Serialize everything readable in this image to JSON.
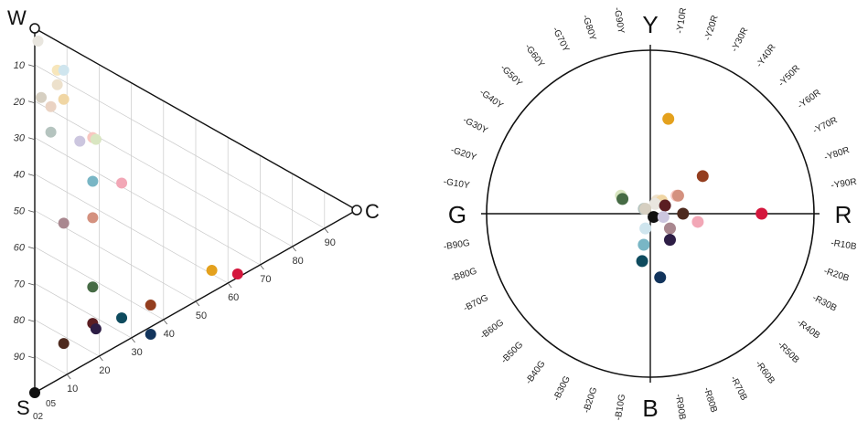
{
  "chart_data": [
    {
      "type": "scatter",
      "projection": "ternary",
      "vertices": {
        "top": "W",
        "right": "C",
        "bottom": "S"
      },
      "left_ticks": [
        "10",
        "20",
        "30",
        "40",
        "50",
        "60",
        "70",
        "80",
        "90"
      ],
      "c_ticks": [
        "10",
        "20",
        "30",
        "40",
        "50",
        "60",
        "70",
        "80",
        "90"
      ],
      "c_ticks_minor": [
        "02",
        "05"
      ],
      "grid": true,
      "points": [
        {
          "s": 3,
          "c": 1,
          "color": "#e9e6df"
        },
        {
          "s": 8,
          "c": 7,
          "color": "#f7e6bb"
        },
        {
          "s": 7,
          "c": 9,
          "color": "#cfe5ee"
        },
        {
          "s": 12,
          "c": 7,
          "color": "#ede1cc"
        },
        {
          "s": 15,
          "c": 9,
          "color": "#f0d6a4"
        },
        {
          "s": 18,
          "c": 2,
          "color": "#d6cfc1"
        },
        {
          "s": 19,
          "c": 5,
          "color": "#ead3c3"
        },
        {
          "s": 21,
          "c": 18,
          "color": "#f8c7c0"
        },
        {
          "s": 21,
          "c": 19,
          "color": "#d9e6c1"
        },
        {
          "s": 26,
          "c": 5,
          "color": "#b5c4bf"
        },
        {
          "s": 24,
          "c": 14,
          "color": "#ccc6df"
        },
        {
          "s": 29,
          "c": 27,
          "color": "#f2a7b6"
        },
        {
          "s": 33,
          "c": 18,
          "color": "#79b6c5"
        },
        {
          "s": 43,
          "c": 18,
          "color": "#d4917f"
        },
        {
          "s": 49,
          "c": 9,
          "color": "#a9878f"
        },
        {
          "s": 39,
          "c": 55,
          "color": "#e4a11d"
        },
        {
          "s": 36,
          "c": 63,
          "color": "#d4173d"
        },
        {
          "s": 62,
          "c": 18,
          "color": "#466b45"
        },
        {
          "s": 58,
          "c": 36,
          "color": "#943e1f"
        },
        {
          "s": 66,
          "c": 27,
          "color": "#0e4b5e"
        },
        {
          "s": 66,
          "c": 36,
          "color": "#12345c"
        },
        {
          "s": 72,
          "c": 18,
          "color": "#5b1e22"
        },
        {
          "s": 73,
          "c": 19,
          "color": "#2d1d45"
        },
        {
          "s": 82,
          "c": 9,
          "color": "#4e2a1e"
        },
        {
          "s": 100,
          "c": 0,
          "color": "#111111"
        }
      ]
    },
    {
      "type": "scatter",
      "projection": "hue-circle",
      "poles": {
        "top": "Y",
        "right": "R",
        "bottom": "B",
        "left": "G"
      },
      "hue_labels": [
        "Y10R",
        "Y20R",
        "Y30R",
        "Y40R",
        "Y50R",
        "Y60R",
        "Y70R",
        "Y80R",
        "Y90R",
        "R10B",
        "R20B",
        "R30B",
        "R40B",
        "R50B",
        "R60B",
        "R70B",
        "R80B",
        "R90B",
        "B10G",
        "B20G",
        "B30G",
        "B40G",
        "B50G",
        "B60G",
        "B70G",
        "B80G",
        "B90G",
        "G10Y",
        "G20Y",
        "G30Y",
        "G40Y",
        "G50Y",
        "G60Y",
        "G70Y",
        "G80Y",
        "G90Y"
      ],
      "xlim": [
        -100,
        100
      ],
      "ylim": [
        -100,
        100
      ],
      "points": [
        {
          "x": 11,
          "y": 58,
          "color": "#e4a11d"
        },
        {
          "x": 32,
          "y": 23,
          "color": "#943e1f"
        },
        {
          "x": -18,
          "y": 11,
          "color": "#d9e6c1"
        },
        {
          "x": -17,
          "y": 9,
          "color": "#466b45"
        },
        {
          "x": 16,
          "y": 11,
          "color": "#f8c7c0"
        },
        {
          "x": 17,
          "y": 11,
          "color": "#d4917f"
        },
        {
          "x": 4,
          "y": 8,
          "color": "#ede1cc"
        },
        {
          "x": 7,
          "y": 8,
          "color": "#f0d6a4"
        },
        {
          "x": 3,
          "y": 6,
          "color": "#e9e6df"
        },
        {
          "x": 9,
          "y": 5,
          "color": "#5b1e22"
        },
        {
          "x": -4,
          "y": 3,
          "color": "#b5c4bf"
        },
        {
          "x": -3,
          "y": 3,
          "color": "#d6cfc1"
        },
        {
          "x": 68,
          "y": 0,
          "color": "#d4173d"
        },
        {
          "x": 20,
          "y": 0,
          "color": "#4e2a1e"
        },
        {
          "x": 2,
          "y": -2,
          "color": "#111111"
        },
        {
          "x": 8,
          "y": -2,
          "color": "#ccc6df"
        },
        {
          "x": 29,
          "y": -5,
          "color": "#f2a7b6"
        },
        {
          "x": -3,
          "y": -9,
          "color": "#cfe5ee"
        },
        {
          "x": 12,
          "y": -9,
          "color": "#a9878f"
        },
        {
          "x": 12,
          "y": -16,
          "color": "#2d1d45"
        },
        {
          "x": -4,
          "y": -19,
          "color": "#79b6c5"
        },
        {
          "x": -5,
          "y": -29,
          "color": "#0e4b5e"
        },
        {
          "x": 6,
          "y": -39,
          "color": "#12345c"
        }
      ]
    }
  ]
}
